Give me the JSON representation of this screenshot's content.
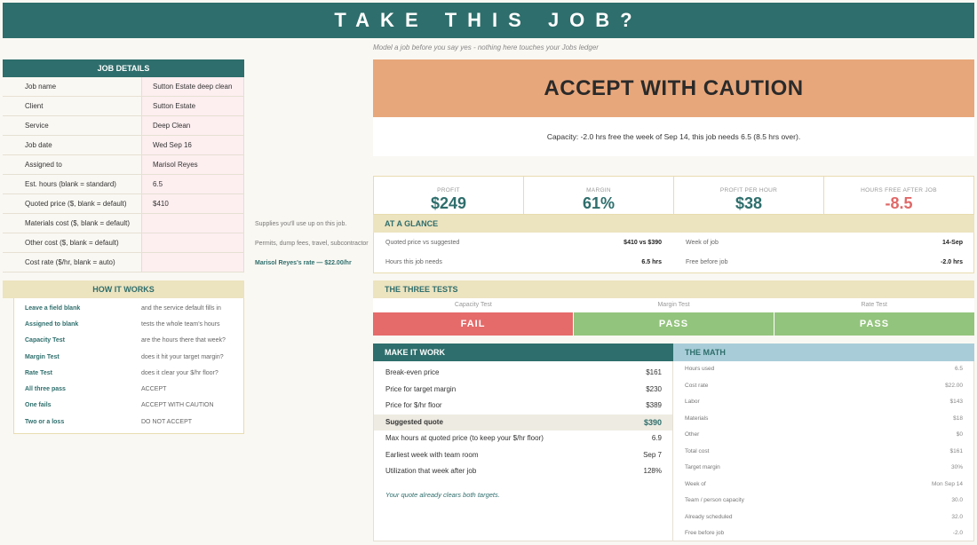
{
  "title": "TAKE THIS JOB?",
  "subtitle": "Model a job before you say yes  -  nothing here touches your Jobs ledger",
  "job_details": {
    "header": "JOB DETAILS",
    "rows": [
      {
        "label": "Job name",
        "value": "Sutton Estate deep clean"
      },
      {
        "label": "Client",
        "value": "Sutton Estate"
      },
      {
        "label": "Service",
        "value": "Deep Clean"
      },
      {
        "label": "Job date",
        "value": "Wed Sep 16"
      },
      {
        "label": "Assigned to",
        "value": "Marisol Reyes"
      },
      {
        "label": "Est. hours (blank = standard)",
        "value": "6.5"
      },
      {
        "label": "Quoted price ($, blank = default)",
        "value": "$410"
      },
      {
        "label": "Materials cost ($, blank = default)",
        "value": ""
      },
      {
        "label": "Other cost ($, blank = default)",
        "value": ""
      },
      {
        "label": "Cost rate ($/hr, blank = auto)",
        "value": ""
      }
    ],
    "notes": {
      "materials": "Supplies you'll use up on this job.",
      "other": "Permits, dump fees, travel, subcontractor",
      "rate": "Marisol Reyes's rate — $22.00/hr"
    }
  },
  "how_it_works": {
    "header": "HOW IT WORKS",
    "rows": [
      {
        "k": "Leave a field blank",
        "v": "and the service default fills in"
      },
      {
        "k": "Assigned to blank",
        "v": "tests the whole team's hours"
      },
      {
        "k": "Capacity Test",
        "v": "are the hours there that week?"
      },
      {
        "k": "Margin Test",
        "v": "does it hit your target margin?"
      },
      {
        "k": "Rate Test",
        "v": "does it clear your $/hr floor?"
      },
      {
        "k": "All three pass",
        "v": "ACCEPT"
      },
      {
        "k": "One fails",
        "v": "ACCEPT WITH CAUTION"
      },
      {
        "k": "Two or a loss",
        "v": "DO NOT ACCEPT"
      }
    ]
  },
  "verdict": "ACCEPT WITH CAUTION",
  "capacity_text": "Capacity: -2.0 hrs free the week of Sep 14, this job needs 6.5 (8.5 hrs over).",
  "kpis": [
    {
      "label": "PROFIT",
      "value": "$249"
    },
    {
      "label": "MARGIN",
      "value": "61%"
    },
    {
      "label": "PROFIT PER HOUR",
      "value": "$38"
    },
    {
      "label": "HOURS FREE AFTER JOB",
      "value": "-8.5"
    }
  ],
  "glance": {
    "header": "AT A GLANCE",
    "quoted_label": "Quoted price vs suggested",
    "quoted_value": "$410  vs  $390",
    "hours_label": "Hours this job needs",
    "hours_value": "6.5 hrs",
    "week_label": "Week of job",
    "week_value": "14-Sep",
    "free_label": "Free before job",
    "free_value": "-2.0 hrs"
  },
  "tests": {
    "header": "THE THREE TESTS",
    "items": [
      {
        "label": "Capacity Test",
        "result": "FAIL"
      },
      {
        "label": "Margin Test",
        "result": "PASS"
      },
      {
        "label": "Rate Test",
        "result": "PASS"
      }
    ]
  },
  "make_it_work": {
    "header": "MAKE IT WORK",
    "rows": [
      {
        "k": "Break-even price",
        "v": "$161"
      },
      {
        "k": "Price for target margin",
        "v": "$230"
      },
      {
        "k": "Price for $/hr floor",
        "v": "$389"
      },
      {
        "k": "Suggested quote",
        "v": "$390"
      },
      {
        "k": "Max hours at quoted price (to keep your $/hr floor)",
        "v": "6.9"
      },
      {
        "k": "Earliest week with team room",
        "v": "Sep 7"
      },
      {
        "k": "Utilization that week after job",
        "v": "128%"
      }
    ],
    "note": "Your quote already clears both targets."
  },
  "the_math": {
    "header": "THE MATH",
    "rows": [
      {
        "k": "Hours used",
        "v": "6.5"
      },
      {
        "k": "Cost rate",
        "v": "$22.00"
      },
      {
        "k": "Labor",
        "v": "$143"
      },
      {
        "k": "Materials",
        "v": "$18"
      },
      {
        "k": "Other",
        "v": "$0"
      },
      {
        "k": "Total cost",
        "v": "$161"
      },
      {
        "k": "Target margin",
        "v": "30%"
      },
      {
        "k": "Week of",
        "v": "Mon Sep 14"
      },
      {
        "k": "Team / person capacity",
        "v": "30.0"
      },
      {
        "k": "Already scheduled",
        "v": "32.0"
      },
      {
        "k": "Free before job",
        "v": "-2.0"
      }
    ]
  },
  "colors": {
    "teal": "#2e6e6c",
    "verdict": "#e8a77b",
    "fail": "#e56a6a",
    "pass": "#93c47d",
    "beige": "#ece3bf",
    "blue": "#a8cdd8",
    "input": "#fdeef0"
  }
}
